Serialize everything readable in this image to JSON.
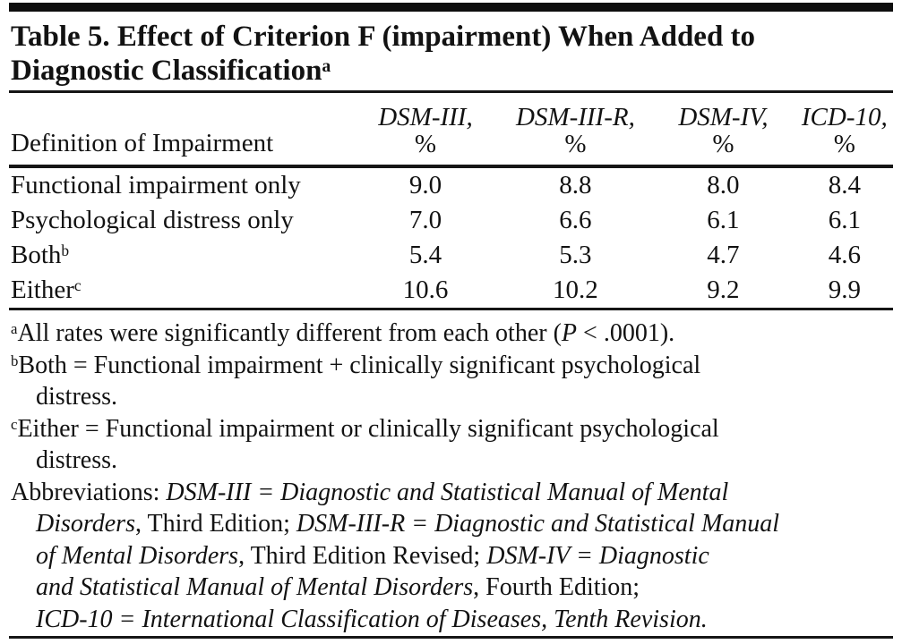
{
  "title": {
    "line1": "Table 5. Effect of Criterion F (impairment) When Added to",
    "line2": "Diagnostic Classification",
    "sup": "a"
  },
  "table": {
    "row_header": "Definition of Impairment",
    "columns": [
      {
        "name": "DSM-III,",
        "unit": "%"
      },
      {
        "name": "DSM-III-R,",
        "unit": "%"
      },
      {
        "name": "DSM-IV,",
        "unit": "%"
      },
      {
        "name": "ICD-10,",
        "unit": "%"
      }
    ],
    "rows": [
      {
        "label": "Functional impairment only",
        "sup": "",
        "values": [
          "9.0",
          "8.8",
          "8.0",
          "8.4"
        ]
      },
      {
        "label": "Psychological distress only",
        "sup": "",
        "values": [
          "7.0",
          "6.6",
          "6.1",
          "6.1"
        ]
      },
      {
        "label": "Both",
        "sup": "b",
        "values": [
          "5.4",
          "5.3",
          "4.7",
          "4.6"
        ]
      },
      {
        "label": "Either",
        "sup": "c",
        "values": [
          "10.6",
          "10.2",
          "9.2",
          "9.9"
        ]
      }
    ]
  },
  "footnotes": {
    "a": {
      "sup": "a",
      "pre": "All rates were significantly different from each other (",
      "italic_p": "P",
      "post": " < .0001)."
    },
    "b": {
      "sup": "b",
      "line1": "Both = Functional impairment + clinically significant psychological",
      "line2": "distress."
    },
    "c": {
      "sup": "c",
      "line1": "Either = Functional impairment or clinically significant psychological",
      "line2": "distress."
    },
    "abbreviations": {
      "label": "Abbreviations: ",
      "line1_italic": "DSM-III = Diagnostic and Statistical Manual of Mental",
      "line2_italic": "Disorders",
      "line2_roman": ", Third Edition; ",
      "line2_italic2": "DSM-III-R = Diagnostic and Statistical Manual",
      "line3_italic": "of Mental Disorders",
      "line3_roman": ", Third Edition Revised; ",
      "line3_italic2": "DSM-IV = Diagnostic",
      "line4_italic": "and Statistical Manual of Mental Disorders",
      "line4_roman": ", Fourth Edition;",
      "line5_italic": "ICD-10 = International Classification of Diseases, Tenth Revision."
    }
  }
}
